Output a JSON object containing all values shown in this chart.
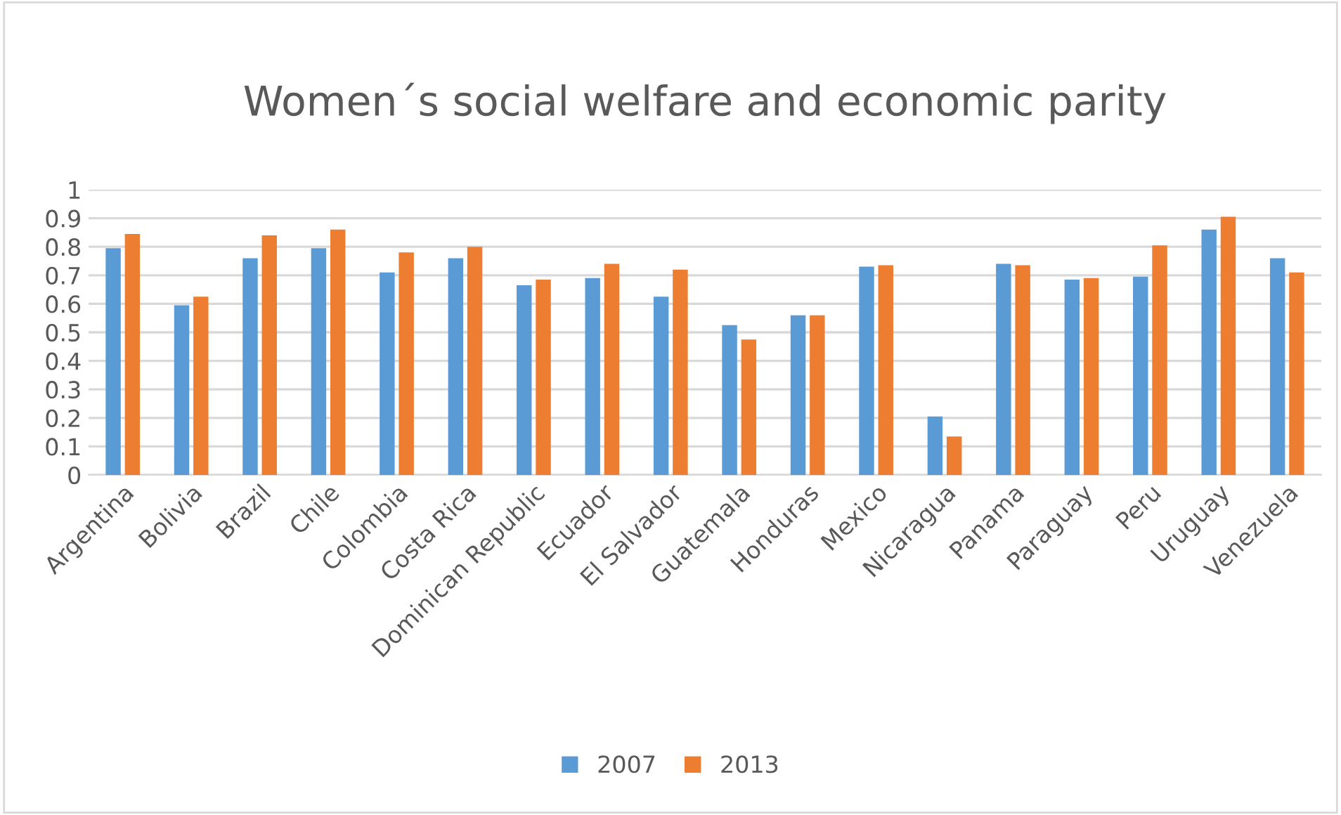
{
  "chart_data": {
    "type": "bar",
    "title": "Women´s social welfare and economic parity",
    "categories": [
      "Argentina",
      "Bolivia",
      "Brazil",
      "Chile",
      "Colombia",
      "Costa Rica",
      "Dominican Republic",
      "Ecuador",
      "El Salvador",
      "Guatemala",
      "Honduras",
      "Mexico",
      "Nicaragua",
      "Panama",
      "Paraguay",
      "Peru",
      "Uruguay",
      "Venezuela"
    ],
    "series": [
      {
        "name": "2007",
        "color": "#5b9bd5",
        "values": [
          0.795,
          0.595,
          0.76,
          0.795,
          0.71,
          0.76,
          0.665,
          0.69,
          0.625,
          0.525,
          0.56,
          0.73,
          0.205,
          0.74,
          0.685,
          0.695,
          0.86,
          0.76
        ]
      },
      {
        "name": "2013",
        "color": "#ed7d31",
        "values": [
          0.845,
          0.625,
          0.84,
          0.86,
          0.78,
          0.8,
          0.685,
          0.74,
          0.72,
          0.475,
          0.56,
          0.735,
          0.135,
          0.735,
          0.69,
          0.805,
          0.905,
          0.71
        ]
      }
    ],
    "ylim": [
      0,
      1
    ],
    "yticks": [
      0,
      0.1,
      0.2,
      0.3,
      0.4,
      0.5,
      0.6,
      0.7,
      0.8,
      0.9,
      1
    ],
    "grid": "y",
    "legend": "bottom"
  }
}
